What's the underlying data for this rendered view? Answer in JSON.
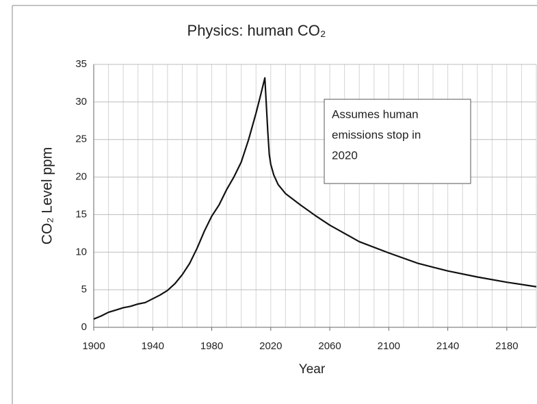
{
  "chart_data": {
    "type": "line",
    "title": "Physics: human CO₂",
    "x_label": "Year",
    "y_label": "CO₂ Level ppm",
    "annotation": [
      "Assumes human",
      "emissions stop in",
      "2020"
    ],
    "x": [
      1900,
      1905,
      1910,
      1915,
      1920,
      1925,
      1930,
      1935,
      1940,
      1945,
      1950,
      1955,
      1960,
      1965,
      1970,
      1975,
      1980,
      1985,
      1990,
      1995,
      2000,
      2005,
      2010,
      2013,
      2016,
      2018,
      2019,
      2020,
      2022,
      2025,
      2030,
      2040,
      2050,
      2060,
      2080,
      2100,
      2120,
      2140,
      2160,
      2180,
      2200
    ],
    "series": [
      {
        "name": "CO₂",
        "color": "#111111",
        "values": [
          1.1,
          1.5,
          2.0,
          2.3,
          2.6,
          2.8,
          3.1,
          3.3,
          3.8,
          4.3,
          4.9,
          5.8,
          7.0,
          8.5,
          10.5,
          12.8,
          14.8,
          16.3,
          18.3,
          20.0,
          22.0,
          25.0,
          28.5,
          30.8,
          33.2,
          26.0,
          23.0,
          21.7,
          20.3,
          19.0,
          17.8,
          16.3,
          14.9,
          13.6,
          11.4,
          9.9,
          8.5,
          7.5,
          6.7,
          6.0,
          5.4
        ]
      }
    ],
    "xlim": [
      1900,
      2200
    ],
    "xticks": [
      1900,
      1940,
      1980,
      2020,
      2060,
      2100,
      2140,
      2180
    ],
    "xgrid": [
      1900,
      1910,
      1920,
      1930,
      1940,
      1950,
      1960,
      1970,
      1980,
      1990,
      2000,
      2010,
      2020,
      2030,
      2040,
      2050,
      2060,
      2070,
      2080,
      2090,
      2100,
      2110,
      2120,
      2130,
      2140,
      2150,
      2160,
      2170,
      2180,
      2190,
      2200
    ],
    "ylim": [
      0,
      35
    ],
    "yticks": [
      0,
      5,
      10,
      15,
      20,
      25,
      30,
      35
    ],
    "grid": true
  }
}
